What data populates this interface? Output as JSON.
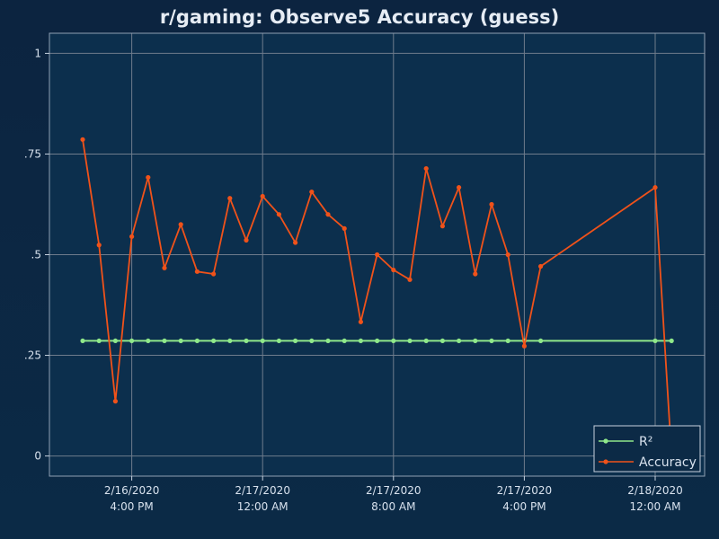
{
  "chart_data": {
    "type": "line",
    "title": "r/gaming: Observe5 Accuracy (guess)",
    "xlabel": "",
    "ylabel": "",
    "ylim": [
      -0.05,
      1.05
    ],
    "y_ticks": [
      {
        "value": 0,
        "label": "0"
      },
      {
        "value": 0.25,
        "label": ".25"
      },
      {
        "value": 0.5,
        "label": ".5"
      },
      {
        "value": 0.75,
        "label": ".75"
      },
      {
        "value": 1,
        "label": "1"
      }
    ],
    "x_ticks": [
      {
        "index": 3,
        "line1": "2/16/2020",
        "line2": "4:00 PM"
      },
      {
        "index": 11,
        "line1": "2/17/2020",
        "line2": "12:00 AM"
      },
      {
        "index": 19,
        "line1": "2/17/2020",
        "line2": "8:00 AM"
      },
      {
        "index": 27,
        "line1": "2/17/2020",
        "line2": "4:00 PM"
      },
      {
        "index": 35,
        "line1": "2/18/2020",
        "line2": "12:00 AM"
      }
    ],
    "grid": true,
    "legend_position": "bottom-right",
    "series": [
      {
        "name": "R²",
        "color": "#8fe88a",
        "points": [
          [
            0,
            0.286
          ],
          [
            1,
            0.286
          ],
          [
            2,
            0.286
          ],
          [
            3,
            0.286
          ],
          [
            4,
            0.286
          ],
          [
            5,
            0.286
          ],
          [
            6,
            0.286
          ],
          [
            7,
            0.286
          ],
          [
            8,
            0.286
          ],
          [
            9,
            0.286
          ],
          [
            10,
            0.286
          ],
          [
            11,
            0.286
          ],
          [
            12,
            0.286
          ],
          [
            13,
            0.286
          ],
          [
            14,
            0.286
          ],
          [
            15,
            0.286
          ],
          [
            16,
            0.286
          ],
          [
            17,
            0.286
          ],
          [
            18,
            0.286
          ],
          [
            19,
            0.286
          ],
          [
            20,
            0.286
          ],
          [
            21,
            0.286
          ],
          [
            22,
            0.286
          ],
          [
            23,
            0.286
          ],
          [
            24,
            0.286
          ],
          [
            25,
            0.286
          ],
          [
            26,
            0.286
          ],
          [
            27,
            0.286
          ],
          [
            28,
            0.286
          ],
          [
            35,
            0.286
          ],
          [
            36,
            0.286
          ]
        ]
      },
      {
        "name": "Accuracy",
        "color": "#f0521a",
        "points": [
          [
            0,
            0.786
          ],
          [
            1,
            0.524
          ],
          [
            2,
            0.136
          ],
          [
            3,
            0.545
          ],
          [
            4,
            0.692
          ],
          [
            5,
            0.467
          ],
          [
            6,
            0.575
          ],
          [
            7,
            0.458
          ],
          [
            8,
            0.452
          ],
          [
            9,
            0.64
          ],
          [
            10,
            0.536
          ],
          [
            11,
            0.645
          ],
          [
            12,
            0.6
          ],
          [
            13,
            0.53
          ],
          [
            14,
            0.656
          ],
          [
            15,
            0.6
          ],
          [
            16,
            0.565
          ],
          [
            17,
            0.333
          ],
          [
            18,
            0.5
          ],
          [
            19,
            0.462
          ],
          [
            20,
            0.438
          ],
          [
            21,
            0.714
          ],
          [
            22,
            0.571
          ],
          [
            23,
            0.667
          ],
          [
            24,
            0.452
          ],
          [
            25,
            0.625
          ],
          [
            26,
            0.5
          ],
          [
            27,
            0.273
          ],
          [
            28,
            0.471
          ],
          [
            35,
            0.667
          ],
          [
            36,
            0.0
          ]
        ]
      }
    ]
  }
}
